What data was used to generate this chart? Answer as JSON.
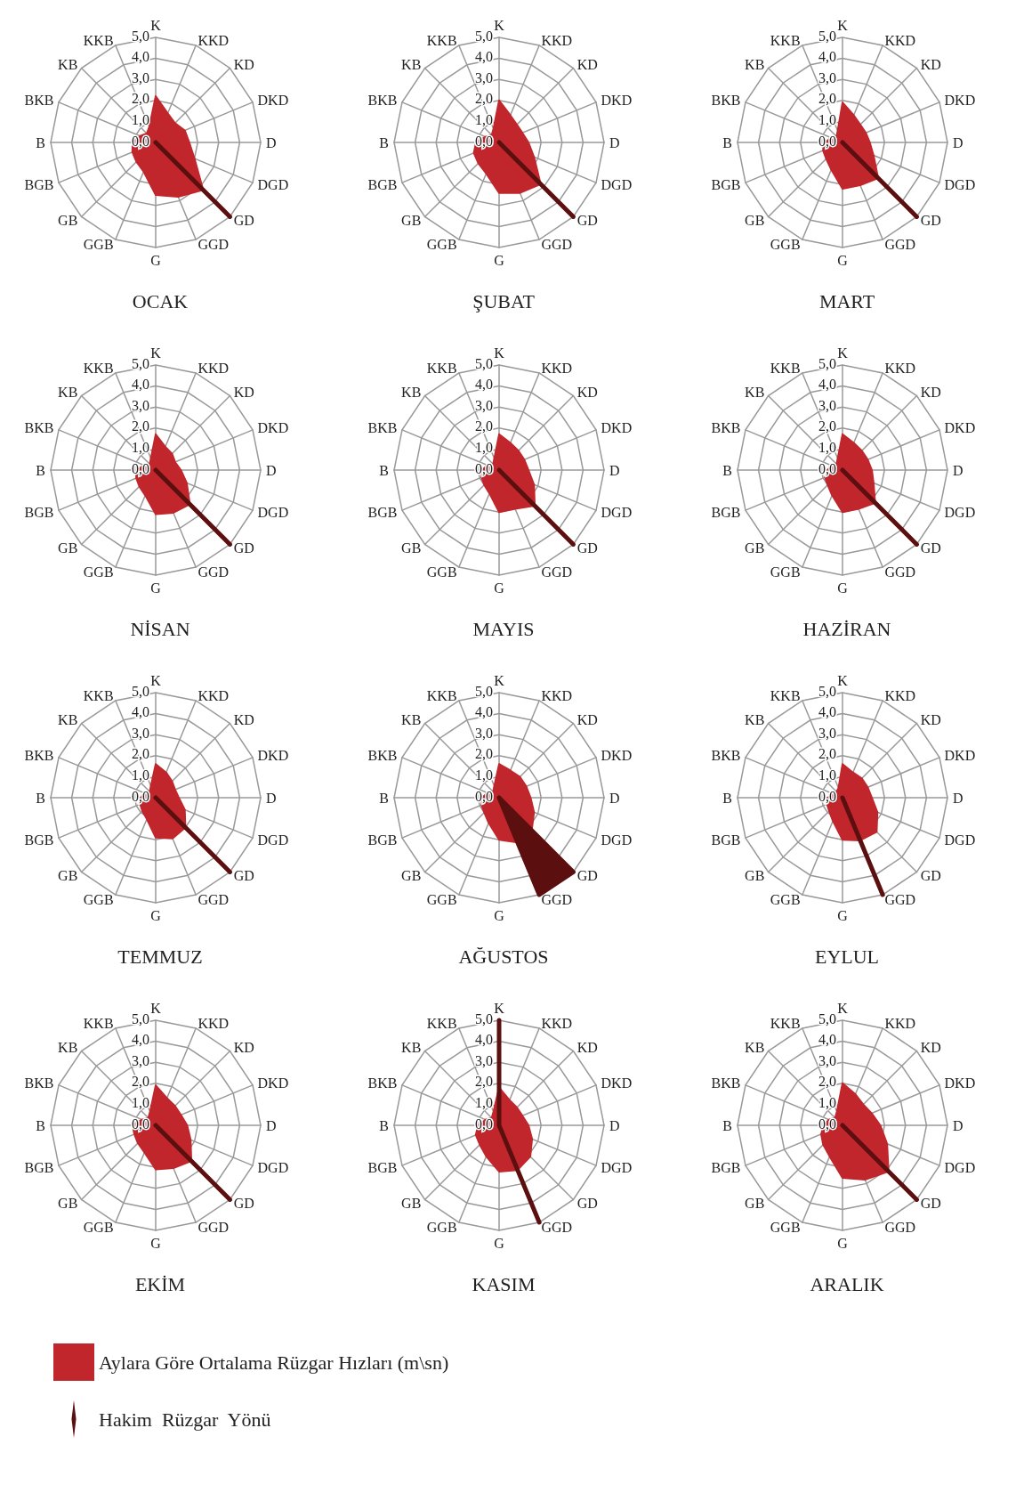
{
  "chart_data": [
    {
      "type": "radar",
      "title": "OCAK",
      "categories": [
        "K",
        "KKD",
        "KD",
        "DKD",
        "D",
        "DGD",
        "GD",
        "GGD",
        "G",
        "GGB",
        "GB",
        "BGB",
        "B",
        "BKB",
        "KB",
        "KKB"
      ],
      "ylim": [
        0,
        5
      ],
      "yticks": [
        {
          "value": 0,
          "label": "0,0"
        },
        {
          "value": 1,
          "label": "1,0"
        },
        {
          "value": 2,
          "label": "2,0"
        },
        {
          "value": 3,
          "label": "3,0"
        },
        {
          "value": 4,
          "label": "4,0"
        },
        {
          "value": 5,
          "label": "5,0"
        }
      ],
      "grid": true,
      "marker": "none",
      "series": [
        {
          "color": "#c0262b",
          "values": [
            2.2,
            1.5,
            1.3,
            1.5,
            1.6,
            2.0,
            3.2,
            2.8,
            2.5,
            1.5,
            1.3,
            1.2,
            1.1,
            0.8,
            0.6,
            0.8
          ]
        },
        {
          "color": "#5c0f0f",
          "values": [
            0,
            0,
            0,
            0,
            0,
            0,
            5,
            0,
            0,
            0,
            0,
            0,
            0,
            0,
            0,
            0
          ]
        }
      ]
    },
    {
      "type": "radar",
      "title": "ŞUBAT",
      "categories": [
        "K",
        "KKD",
        "KD",
        "DKD",
        "D",
        "DGD",
        "GD",
        "GGD",
        "G",
        "GGB",
        "GB",
        "BGB",
        "B",
        "BKB",
        "KB",
        "KKB"
      ],
      "ylim": [
        0,
        5
      ],
      "yticks": [
        {
          "value": 0,
          "label": "0,0"
        },
        {
          "value": 1,
          "label": "1,0"
        },
        {
          "value": 2,
          "label": "2,0"
        },
        {
          "value": 3,
          "label": "3,0"
        },
        {
          "value": 4,
          "label": "4,0"
        },
        {
          "value": 5,
          "label": "5,0"
        }
      ],
      "grid": true,
      "marker": "none",
      "series": [
        {
          "color": "#c0262b",
          "values": [
            2.0,
            1.4,
            1.2,
            1.2,
            1.4,
            1.8,
            2.8,
            2.6,
            2.4,
            1.6,
            1.4,
            1.3,
            1.1,
            0.7,
            0.5,
            0.7
          ]
        },
        {
          "color": "#5c0f0f",
          "values": [
            0,
            0,
            0,
            0,
            0,
            0,
            5,
            0,
            0,
            0,
            0,
            0,
            0,
            0,
            0,
            0
          ]
        }
      ]
    },
    {
      "type": "radar",
      "title": "MART",
      "categories": [
        "K",
        "KKD",
        "KD",
        "DKD",
        "D",
        "DGD",
        "GD",
        "GGD",
        "G",
        "GGB",
        "GB",
        "BGB",
        "B",
        "BKB",
        "KB",
        "KKB"
      ],
      "ylim": [
        0,
        5
      ],
      "yticks": [
        {
          "value": 0,
          "label": "0,0"
        },
        {
          "value": 1,
          "label": "1,0"
        },
        {
          "value": 2,
          "label": "2,0"
        },
        {
          "value": 3,
          "label": "3,0"
        },
        {
          "value": 4,
          "label": "4,0"
        },
        {
          "value": 5,
          "label": "5,0"
        }
      ],
      "grid": true,
      "marker": "none",
      "series": [
        {
          "color": "#c0262b",
          "values": [
            1.9,
            1.4,
            1.2,
            1.2,
            1.3,
            1.6,
            2.4,
            2.2,
            2.2,
            1.4,
            1.1,
            1.0,
            0.8,
            0.6,
            0.4,
            0.6
          ]
        },
        {
          "color": "#5c0f0f",
          "values": [
            0,
            0,
            0,
            0,
            0,
            0,
            5,
            0,
            0,
            0,
            0,
            0,
            0,
            0,
            0,
            0
          ]
        }
      ]
    },
    {
      "type": "radar",
      "title": "NİSAN",
      "categories": [
        "K",
        "KKD",
        "KD",
        "DKD",
        "D",
        "DGD",
        "GD",
        "GGD",
        "G",
        "GGB",
        "GB",
        "BGB",
        "B",
        "BKB",
        "KB",
        "KKB"
      ],
      "ylim": [
        0,
        5
      ],
      "yticks": [
        {
          "value": 0,
          "label": "0,0"
        },
        {
          "value": 1,
          "label": "1,0"
        },
        {
          "value": 2,
          "label": "2,0"
        },
        {
          "value": 3,
          "label": "3,0"
        },
        {
          "value": 4,
          "label": "4,0"
        },
        {
          "value": 5,
          "label": "5,0"
        }
      ],
      "grid": true,
      "marker": "none",
      "series": [
        {
          "color": "#c0262b",
          "values": [
            1.7,
            1.2,
            1.1,
            1.0,
            1.2,
            1.6,
            2.3,
            2.2,
            2.1,
            1.3,
            1.1,
            1.0,
            0.9,
            0.6,
            0.4,
            0.6
          ]
        },
        {
          "color": "#5c0f0f",
          "values": [
            0,
            0,
            0,
            0,
            0,
            0,
            5,
            0,
            0,
            0,
            0,
            0,
            0,
            0,
            0,
            0
          ]
        }
      ]
    },
    {
      "type": "radar",
      "title": "MAYIS",
      "categories": [
        "K",
        "KKD",
        "KD",
        "DKD",
        "D",
        "DGD",
        "GD",
        "GGD",
        "G",
        "GGB",
        "GB",
        "BGB",
        "B",
        "BKB",
        "KB",
        "KKB"
      ],
      "ylim": [
        0,
        5
      ],
      "yticks": [
        {
          "value": 0,
          "label": "0,0"
        },
        {
          "value": 1,
          "label": "1,0"
        },
        {
          "value": 2,
          "label": "2,0"
        },
        {
          "value": 3,
          "label": "3,0"
        },
        {
          "value": 4,
          "label": "4,0"
        },
        {
          "value": 5,
          "label": "5,0"
        }
      ],
      "grid": true,
      "marker": "none",
      "series": [
        {
          "color": "#c0262b",
          "values": [
            1.7,
            1.4,
            1.3,
            1.3,
            1.4,
            1.8,
            2.4,
            2.0,
            2.0,
            1.2,
            1.0,
            0.9,
            0.8,
            0.6,
            0.4,
            0.6
          ]
        },
        {
          "color": "#5c0f0f",
          "values": [
            0,
            0,
            0,
            0,
            0,
            0,
            5,
            0,
            0,
            0,
            0,
            0,
            0,
            0,
            0,
            0
          ]
        }
      ]
    },
    {
      "type": "radar",
      "title": "HAZİRAN",
      "categories": [
        "K",
        "KKD",
        "KD",
        "DKD",
        "D",
        "DGD",
        "GD",
        "GGD",
        "G",
        "GGB",
        "GB",
        "BGB",
        "B",
        "BKB",
        "KB",
        "KKB"
      ],
      "ylim": [
        0,
        5
      ],
      "yticks": [
        {
          "value": 0,
          "label": "0,0"
        },
        {
          "value": 1,
          "label": "1,0"
        },
        {
          "value": 2,
          "label": "2,0"
        },
        {
          "value": 3,
          "label": "3,0"
        },
        {
          "value": 4,
          "label": "4,0"
        },
        {
          "value": 5,
          "label": "5,0"
        }
      ],
      "grid": true,
      "marker": "none",
      "series": [
        {
          "color": "#c0262b",
          "values": [
            1.7,
            1.4,
            1.3,
            1.3,
            1.4,
            1.6,
            2.2,
            2.0,
            2.0,
            1.3,
            1.0,
            0.9,
            0.7,
            0.6,
            0.4,
            0.6
          ]
        },
        {
          "color": "#5c0f0f",
          "values": [
            0,
            0,
            0,
            0,
            0,
            0,
            5,
            0,
            0,
            0,
            0,
            0,
            0,
            0,
            0,
            0
          ]
        }
      ]
    },
    {
      "type": "radar",
      "title": "TEMMUZ",
      "categories": [
        "K",
        "KKD",
        "KD",
        "DKD",
        "D",
        "DGD",
        "GD",
        "GGD",
        "G",
        "GGB",
        "GB",
        "BGB",
        "B",
        "BKB",
        "KB",
        "KKB"
      ],
      "ylim": [
        0,
        5
      ],
      "yticks": [
        {
          "value": 0,
          "label": "0,0"
        },
        {
          "value": 1,
          "label": "1,0"
        },
        {
          "value": 2,
          "label": "2,0"
        },
        {
          "value": 3,
          "label": "3,0"
        },
        {
          "value": 4,
          "label": "4,0"
        },
        {
          "value": 5,
          "label": "5,0"
        }
      ],
      "grid": true,
      "marker": "none",
      "series": [
        {
          "color": "#c0262b",
          "values": [
            1.6,
            1.3,
            1.1,
            1.0,
            1.1,
            1.5,
            2.0,
            2.1,
            1.9,
            1.1,
            0.9,
            0.8,
            0.7,
            0.6,
            0.4,
            0.6
          ]
        },
        {
          "color": "#5c0f0f",
          "values": [
            0,
            0,
            0,
            0,
            0,
            0,
            5,
            0,
            0,
            0,
            0,
            0,
            0,
            0,
            0,
            0
          ]
        }
      ]
    },
    {
      "type": "radar",
      "title": "AĞUSTOS",
      "categories": [
        "K",
        "KKD",
        "KD",
        "DKD",
        "D",
        "DGD",
        "GD",
        "GGD",
        "G",
        "GGB",
        "GB",
        "BGB",
        "B",
        "BKB",
        "KB",
        "KKB"
      ],
      "ylim": [
        0,
        5
      ],
      "yticks": [
        {
          "value": 0,
          "label": "0,0"
        },
        {
          "value": 1,
          "label": "1,0"
        },
        {
          "value": 2,
          "label": "2,0"
        },
        {
          "value": 3,
          "label": "3,0"
        },
        {
          "value": 4,
          "label": "4,0"
        },
        {
          "value": 5,
          "label": "5,0"
        }
      ],
      "grid": true,
      "marker": "none",
      "series": [
        {
          "color": "#c0262b",
          "values": [
            1.6,
            1.4,
            1.4,
            1.4,
            1.5,
            1.8,
            2.2,
            2.3,
            2.0,
            1.3,
            1.0,
            0.9,
            0.8,
            0.6,
            0.4,
            0.6
          ]
        },
        {
          "color": "#5c0f0f",
          "values": [
            0,
            0,
            0,
            0,
            0,
            0,
            5,
            5,
            0,
            0,
            0,
            0,
            0,
            0,
            0,
            0
          ]
        }
      ]
    },
    {
      "type": "radar",
      "title": "EYLUL",
      "categories": [
        "K",
        "KKD",
        "KD",
        "DKD",
        "D",
        "DGD",
        "GD",
        "GGD",
        "G",
        "GGB",
        "GB",
        "BGB",
        "B",
        "BKB",
        "KB",
        "KKB"
      ],
      "ylim": [
        0,
        5
      ],
      "yticks": [
        {
          "value": 0,
          "label": "0,0"
        },
        {
          "value": 1,
          "label": "1,0"
        },
        {
          "value": 2,
          "label": "2,0"
        },
        {
          "value": 3,
          "label": "3,0"
        },
        {
          "value": 4,
          "label": "4,0"
        },
        {
          "value": 5,
          "label": "5,0"
        }
      ],
      "grid": true,
      "marker": "none",
      "series": [
        {
          "color": "#c0262b",
          "values": [
            1.6,
            1.3,
            1.3,
            1.3,
            1.4,
            1.8,
            2.3,
            2.2,
            2.0,
            1.2,
            0.9,
            0.8,
            0.7,
            0.5,
            0.4,
            0.5
          ]
        },
        {
          "color": "#5c0f0f",
          "values": [
            0,
            0,
            0,
            0,
            0,
            0,
            0,
            5,
            0,
            0,
            0,
            0,
            0,
            0,
            0,
            0
          ]
        }
      ]
    },
    {
      "type": "radar",
      "title": "EKİM",
      "categories": [
        "K",
        "KKD",
        "KD",
        "DKD",
        "D",
        "DGD",
        "GD",
        "GGD",
        "G",
        "GGB",
        "GB",
        "BGB",
        "B",
        "BKB",
        "KB",
        "KKB"
      ],
      "ylim": [
        0,
        5
      ],
      "yticks": [
        {
          "value": 0,
          "label": "0,0"
        },
        {
          "value": 1,
          "label": "1,0"
        },
        {
          "value": 2,
          "label": "2,0"
        },
        {
          "value": 3,
          "label": "3,0"
        },
        {
          "value": 4,
          "label": "4,0"
        },
        {
          "value": 5,
          "label": "5,0"
        }
      ],
      "grid": true,
      "marker": "none",
      "series": [
        {
          "color": "#c0262b",
          "values": [
            1.9,
            1.4,
            1.3,
            1.3,
            1.5,
            1.8,
            2.4,
            2.2,
            2.1,
            1.4,
            1.2,
            1.1,
            1.1,
            0.7,
            0.5,
            0.7
          ]
        },
        {
          "color": "#5c0f0f",
          "values": [
            0,
            0,
            0,
            0,
            0,
            0,
            5,
            0,
            0,
            0,
            0,
            0,
            0,
            0,
            0,
            0
          ]
        }
      ]
    },
    {
      "type": "radar",
      "title": "KASIM",
      "categories": [
        "K",
        "KKD",
        "KD",
        "DKD",
        "D",
        "DGD",
        "GD",
        "GGD",
        "G",
        "GGB",
        "GB",
        "BGB",
        "B",
        "BKB",
        "KB",
        "KKB"
      ],
      "ylim": [
        0,
        5
      ],
      "yticks": [
        {
          "value": 0,
          "label": "0,0"
        },
        {
          "value": 1,
          "label": "1,0"
        },
        {
          "value": 2,
          "label": "2,0"
        },
        {
          "value": 3,
          "label": "3,0"
        },
        {
          "value": 4,
          "label": "4,0"
        },
        {
          "value": 5,
          "label": "5,0"
        }
      ],
      "grid": true,
      "marker": "none",
      "series": [
        {
          "color": "#c0262b",
          "values": [
            1.8,
            1.3,
            1.2,
            1.2,
            1.4,
            1.7,
            2.1,
            2.3,
            2.2,
            1.6,
            1.3,
            1.2,
            1.0,
            0.7,
            0.5,
            0.7
          ]
        },
        {
          "color": "#5c0f0f",
          "values": [
            5,
            0,
            0,
            0,
            0,
            0,
            0,
            5,
            0,
            0,
            0,
            0,
            0,
            0,
            0,
            0
          ]
        }
      ]
    },
    {
      "type": "radar",
      "title": "ARALIK",
      "categories": [
        "K",
        "KKD",
        "KD",
        "DKD",
        "D",
        "DGD",
        "GD",
        "GGD",
        "G",
        "GGB",
        "GB",
        "BGB",
        "B",
        "BKB",
        "KB",
        "KKB"
      ],
      "ylim": [
        0,
        5
      ],
      "yticks": [
        {
          "value": 0,
          "label": "0,0"
        },
        {
          "value": 1,
          "label": "1,0"
        },
        {
          "value": 2,
          "label": "2,0"
        },
        {
          "value": 3,
          "label": "3,0"
        },
        {
          "value": 4,
          "label": "4,0"
        },
        {
          "value": 5,
          "label": "5,0"
        }
      ],
      "grid": true,
      "marker": "none",
      "legend": "bottom",
      "series": [
        {
          "name": "Aylara Göre Ortalama Rüzgar Hızları (m\\sn)",
          "color": "#c0262b",
          "values": [
            2.0,
            1.6,
            1.4,
            1.5,
            1.8,
            2.3,
            3.1,
            2.8,
            2.5,
            1.6,
            1.3,
            1.1,
            0.9,
            0.7,
            0.5,
            0.7
          ]
        },
        {
          "name": "Hakim  Rüzgar  Yönü",
          "color": "#5c0f0f",
          "values": [
            0,
            0,
            0,
            0,
            0,
            0,
            5,
            0,
            0,
            0,
            0,
            0,
            0,
            0,
            0,
            0
          ]
        }
      ]
    }
  ]
}
